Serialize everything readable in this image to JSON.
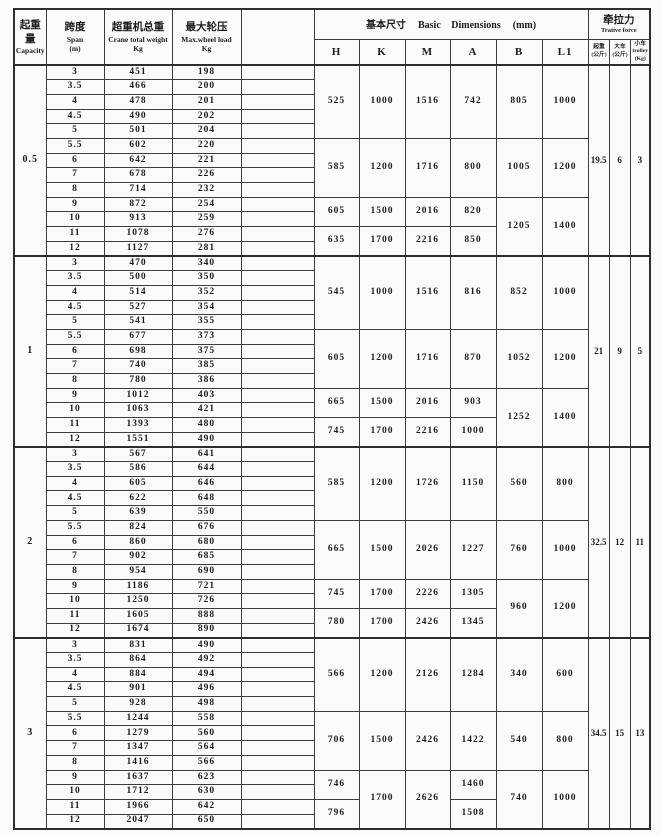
{
  "page": {
    "background": "#fbfbfa",
    "line_color": "#2e2e2e",
    "text_color": "#1c1c1c"
  },
  "header": {
    "capacity_zh": "起重量",
    "capacity_en": "Capacity",
    "span_zh": "跨度",
    "span_en": "Span",
    "span_unit": "(m)",
    "weight_zh": "超重机总重",
    "weight_en": "Crane total weight",
    "weight_unit": "Kg",
    "wheel_zh": "最大轮压",
    "wheel_en": "Max.wheel load",
    "wheel_unit": "Kg",
    "dims_zh": "基本尺寸",
    "dims_en": "Basic  Dimensions",
    "dims_unit": "(mm)",
    "dim_cols": [
      "H",
      "K",
      "M",
      "A",
      "B",
      "L1"
    ],
    "traction_zh": "牵拉力",
    "traction_en": "Trative force",
    "traction_cols": [
      {
        "line1": "起重",
        "line2": "(公斤)",
        "line3": ""
      },
      {
        "line1": "大车",
        "line2": "(公斤)",
        "line3": ""
      },
      {
        "line1": "小车",
        "line2": "trolley",
        "line3": "(Kg)"
      }
    ]
  },
  "groups": [
    {
      "capacity": "0.5",
      "rows": [
        {
          "span": "3",
          "weight": "451",
          "wheel": "198"
        },
        {
          "span": "3.5",
          "weight": "466",
          "wheel": "200"
        },
        {
          "span": "4",
          "weight": "478",
          "wheel": "201"
        },
        {
          "span": "4.5",
          "weight": "490",
          "wheel": "202"
        },
        {
          "span": "5",
          "weight": "501",
          "wheel": "204"
        },
        {
          "span": "5.5",
          "weight": "602",
          "wheel": "220"
        },
        {
          "span": "6",
          "weight": "642",
          "wheel": "221"
        },
        {
          "span": "7",
          "weight": "678",
          "wheel": "226"
        },
        {
          "span": "8",
          "weight": "714",
          "wheel": "232"
        },
        {
          "span": "9",
          "weight": "872",
          "wheel": "254"
        },
        {
          "span": "10",
          "weight": "913",
          "wheel": "259"
        },
        {
          "span": "11",
          "weight": "1078",
          "wheel": "276"
        },
        {
          "span": "12",
          "weight": "1127",
          "wheel": "281"
        }
      ],
      "dims": {
        "H": [
          "525",
          "585",
          "605",
          "635"
        ],
        "K": [
          "1000",
          "1200",
          "1500",
          "1700"
        ],
        "M": [
          "1516",
          "1716",
          "2016",
          "2216"
        ],
        "A": [
          "742",
          "800",
          "820",
          "850"
        ],
        "B": [
          "805",
          "1005",
          "1205"
        ],
        "L1": [
          "1000",
          "1200",
          "1400"
        ]
      },
      "traction": [
        "19.5",
        "6",
        "3"
      ]
    },
    {
      "capacity": "1",
      "rows": [
        {
          "span": "3",
          "weight": "470",
          "wheel": "340"
        },
        {
          "span": "3.5",
          "weight": "500",
          "wheel": "350"
        },
        {
          "span": "4",
          "weight": "514",
          "wheel": "352"
        },
        {
          "span": "4.5",
          "weight": "527",
          "wheel": "354"
        },
        {
          "span": "5",
          "weight": "541",
          "wheel": "355"
        },
        {
          "span": "5.5",
          "weight": "677",
          "wheel": "373"
        },
        {
          "span": "6",
          "weight": "698",
          "wheel": "375"
        },
        {
          "span": "7",
          "weight": "740",
          "wheel": "385"
        },
        {
          "span": "8",
          "weight": "780",
          "wheel": "386"
        },
        {
          "span": "9",
          "weight": "1012",
          "wheel": "403"
        },
        {
          "span": "10",
          "weight": "1063",
          "wheel": "421"
        },
        {
          "span": "11",
          "weight": "1393",
          "wheel": "480"
        },
        {
          "span": "12",
          "weight": "1551",
          "wheel": "490"
        }
      ],
      "dims": {
        "H": [
          "545",
          "605",
          "665",
          "745"
        ],
        "K": [
          "1000",
          "1200",
          "1500",
          "1700"
        ],
        "M": [
          "1516",
          "1716",
          "2016",
          "2216"
        ],
        "A": [
          "816",
          "870",
          "903",
          "1000"
        ],
        "B": [
          "852",
          "1052",
          "1252"
        ],
        "L1": [
          "1000",
          "1200",
          "1400"
        ]
      },
      "traction": [
        "21",
        "9",
        "5"
      ]
    },
    {
      "capacity": "2",
      "rows": [
        {
          "span": "3",
          "weight": "567",
          "wheel": "641"
        },
        {
          "span": "3.5",
          "weight": "586",
          "wheel": "644"
        },
        {
          "span": "4",
          "weight": "605",
          "wheel": "646"
        },
        {
          "span": "4.5",
          "weight": "622",
          "wheel": "648"
        },
        {
          "span": "5",
          "weight": "639",
          "wheel": "550"
        },
        {
          "span": "5.5",
          "weight": "824",
          "wheel": "676"
        },
        {
          "span": "6",
          "weight": "860",
          "wheel": "680"
        },
        {
          "span": "7",
          "weight": "902",
          "wheel": "685"
        },
        {
          "span": "8",
          "weight": "954",
          "wheel": "690"
        },
        {
          "span": "9",
          "weight": "1186",
          "wheel": "721"
        },
        {
          "span": "10",
          "weight": "1250",
          "wheel": "726"
        },
        {
          "span": "11",
          "weight": "1605",
          "wheel": "888"
        },
        {
          "span": "12",
          "weight": "1674",
          "wheel": "890"
        }
      ],
      "dims": {
        "H": [
          "585",
          "665",
          "745",
          "780"
        ],
        "K": [
          "1200",
          "1500",
          "1700",
          "1700"
        ],
        "M": [
          "1726",
          "2026",
          "2226",
          "2426"
        ],
        "A": [
          "1150",
          "1227",
          "1305",
          "1345"
        ],
        "B": [
          "560",
          "760",
          "960"
        ],
        "L1": [
          "800",
          "1000",
          "1200"
        ]
      },
      "traction": [
        "32.5",
        "12",
        "11"
      ]
    },
    {
      "capacity": "3",
      "rows": [
        {
          "span": "3",
          "weight": "831",
          "wheel": "490"
        },
        {
          "span": "3.5",
          "weight": "864",
          "wheel": "492"
        },
        {
          "span": "4",
          "weight": "884",
          "wheel": "494"
        },
        {
          "span": "4.5",
          "weight": "901",
          "wheel": "496"
        },
        {
          "span": "5",
          "weight": "928",
          "wheel": "498"
        },
        {
          "span": "5.5",
          "weight": "1244",
          "wheel": "558"
        },
        {
          "span": "6",
          "weight": "1279",
          "wheel": "560"
        },
        {
          "span": "7",
          "weight": "1347",
          "wheel": "564"
        },
        {
          "span": "8",
          "weight": "1416",
          "wheel": "566"
        },
        {
          "span": "9",
          "weight": "1637",
          "wheel": "623"
        },
        {
          "span": "10",
          "weight": "1712",
          "wheel": "630"
        },
        {
          "span": "11",
          "weight": "1966",
          "wheel": "642"
        },
        {
          "span": "12",
          "weight": "2047",
          "wheel": "650"
        }
      ],
      "dims": {
        "H": [
          "566",
          "706",
          "746",
          "796"
        ],
        "K": [
          "1200",
          "1500",
          "1700"
        ],
        "M": [
          "2126",
          "2426",
          "2626"
        ],
        "A": [
          "1284",
          "1422",
          "1460",
          "1508"
        ],
        "B": [
          "340",
          "540",
          "740"
        ],
        "L1": [
          "600",
          "800",
          "1000"
        ]
      },
      "traction": [
        "34.5",
        "15",
        "13"
      ]
    }
  ]
}
